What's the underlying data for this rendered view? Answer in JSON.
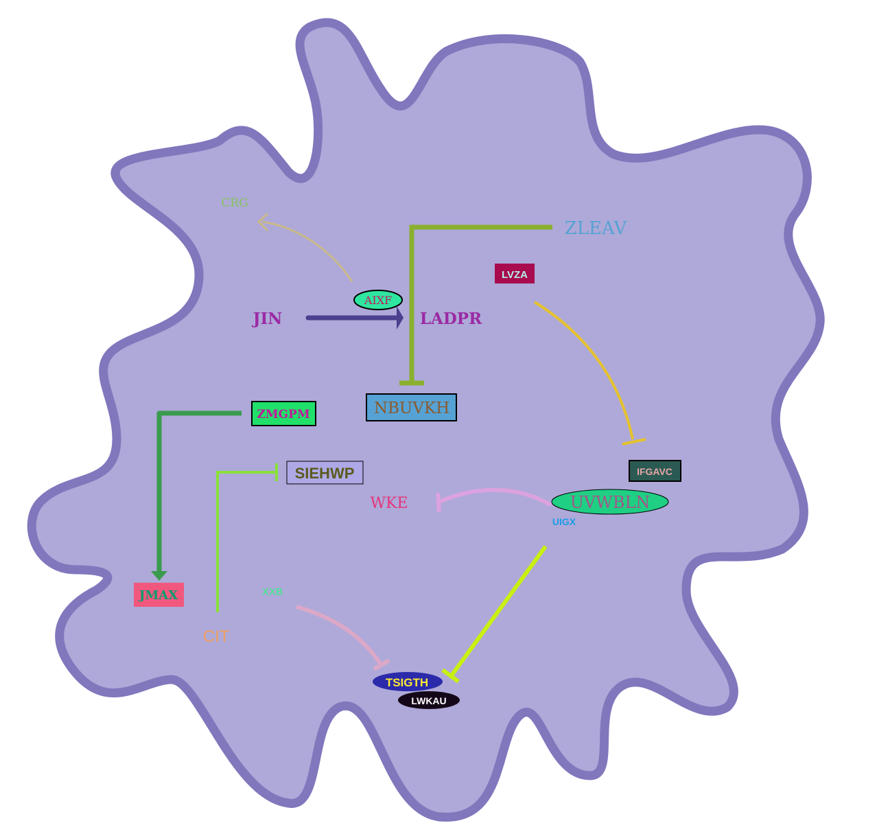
{
  "colors": {
    "cell_fill": "#aea9d8",
    "cell_stroke": "#8077bd"
  },
  "nodes": {
    "crg": {
      "label": "CRG",
      "color": "#86c35b"
    },
    "zleav": {
      "label": "ZLEAV",
      "color": "#56a2d4"
    },
    "lvza": {
      "label": "LVZA",
      "color": "#b5f0e6",
      "bg": "#a80c4e"
    },
    "aixf": {
      "label": "AIXF",
      "color": "#c2185b",
      "bg": "#2ee6a0"
    },
    "jin": {
      "label": "JIN",
      "color": "#9b2aa4"
    },
    "ladpr": {
      "label": "LADPR",
      "color": "#9b2aa4"
    },
    "nbuvkh": {
      "label": "NBUVKH",
      "color": "#8a5a2e",
      "bg": "#56a2d4"
    },
    "zmgpm": {
      "label": "ZMGPM",
      "color": "#c2189a",
      "bg": "#21e06a"
    },
    "siehwp": {
      "label": "SIEHWP",
      "color": "#5b5a1e",
      "bg": "#aea9e6"
    },
    "ifgavc": {
      "label": "IFGAVC",
      "color": "#e3a6a6",
      "bg": "#2b5a52"
    },
    "wke": {
      "label": "WKE",
      "color": "#e6337a"
    },
    "uvwbln": {
      "label": "UVWBLN",
      "color": "#a6548a",
      "bg": "#1fcf84"
    },
    "uigx": {
      "label": "UIGX",
      "color": "#1a9be6"
    },
    "jmax": {
      "label": "JMAX",
      "color": "#0a9b6e",
      "bg": "#f2587e"
    },
    "cit": {
      "label": "CIT",
      "color": "#f0a060"
    },
    "xxb": {
      "label": "XXB",
      "color": "#32f080"
    },
    "tsigth": {
      "label": "TSIGTH",
      "color": "#ffe834",
      "bg": "#2a2aaa"
    },
    "lwkau": {
      "label": "LWKAU",
      "color": "#ffffff",
      "bg": "#140818"
    }
  },
  "edges": [
    {
      "from": "AIXF",
      "to": "CRG",
      "type": "activation",
      "color": "#c9b98a"
    },
    {
      "from": "JIN",
      "to": "LADPR",
      "type": "activation",
      "color": "#4b3f8e"
    },
    {
      "from": "ZLEAV",
      "to": "NBUVKH",
      "type": "inhibition",
      "color": "#8ab02e"
    },
    {
      "from": "LVZA",
      "to": "IFGAVC",
      "type": "inhibition",
      "color": "#e6c22e"
    },
    {
      "from": "ZMGPM",
      "to": "JMAX",
      "type": "activation",
      "color": "#3a9b4e"
    },
    {
      "from": "CIT",
      "to": "SIEHWP",
      "type": "inhibition",
      "color": "#8ae03a"
    },
    {
      "from": "UVWBLN",
      "to": "WKE",
      "type": "inhibition",
      "color": "#dca2e0"
    },
    {
      "from": "UVWBLN",
      "to": "TSIGTH",
      "type": "inhibition",
      "color": "#c8f010"
    },
    {
      "from": "XXB",
      "to": "TSIGTH",
      "type": "inhibition",
      "color": "#dca8c8"
    }
  ]
}
